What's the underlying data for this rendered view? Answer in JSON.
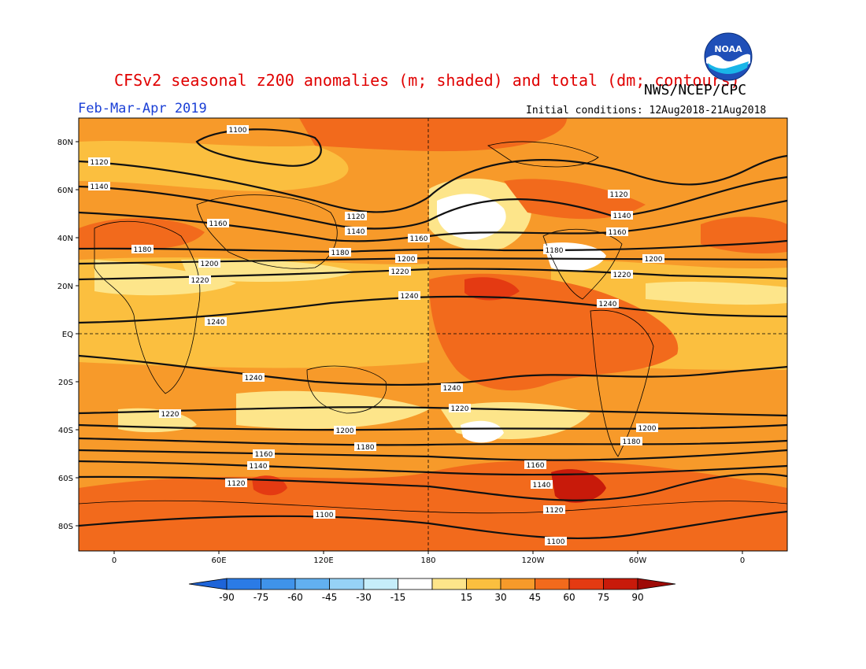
{
  "header": {
    "title": "CFSv2 seasonal z200 anomalies (m; shaded) and total (dm; contours)",
    "agency": "NWS/NCEP/CPC",
    "season": "Feb-Mar-Apr 2019",
    "initial_conditions": "Initial conditions: 12Aug2018-21Aug2018",
    "logo_text": "NOAA"
  },
  "map": {
    "lat_ticks": [
      "80N",
      "60N",
      "40N",
      "20N",
      "EQ",
      "20S",
      "40S",
      "60S",
      "80S"
    ],
    "lon_ticks": [
      "0",
      "60E",
      "120E",
      "180",
      "120W",
      "60W",
      "0"
    ],
    "contours": [
      {
        "value": 1100,
        "labels": [
          "1100",
          "1100",
          "1100"
        ]
      },
      {
        "value": 1120,
        "labels": [
          "1120",
          "1120",
          "1120",
          "1120",
          "1120"
        ]
      },
      {
        "value": 1140,
        "labels": [
          "1140",
          "1140",
          "1140",
          "1140",
          "1140"
        ]
      },
      {
        "value": 1160,
        "labels": [
          "1160",
          "1160",
          "1160",
          "1160",
          "1160"
        ]
      },
      {
        "value": 1180,
        "labels": [
          "1180",
          "1180",
          "1180",
          "1180",
          "1180"
        ]
      },
      {
        "value": 1200,
        "labels": [
          "1200",
          "1200",
          "1200",
          "1200",
          "1200"
        ]
      },
      {
        "value": 1220,
        "labels": [
          "1220",
          "1220",
          "1220",
          "1220",
          "1220"
        ]
      },
      {
        "value": 1240,
        "labels": [
          "1240",
          "1240",
          "1240",
          "1240",
          "1240"
        ]
      }
    ]
  },
  "colorbar": {
    "ticks": [
      "-90",
      "-75",
      "-60",
      "-45",
      "-30",
      "-15",
      "15",
      "30",
      "45",
      "60",
      "75",
      "90"
    ],
    "colors": [
      "#1e64d8",
      "#2b7be6",
      "#3f93ea",
      "#62b0f0",
      "#96d2f6",
      "#c6eefa",
      "#ffffff",
      "#fde58a",
      "#fbbf3f",
      "#f79a2a",
      "#f26a1c",
      "#e43a12",
      "#c81a0a",
      "#9e0a06"
    ]
  },
  "colors": {
    "title": "#e00000",
    "season": "#1a3fd6"
  }
}
